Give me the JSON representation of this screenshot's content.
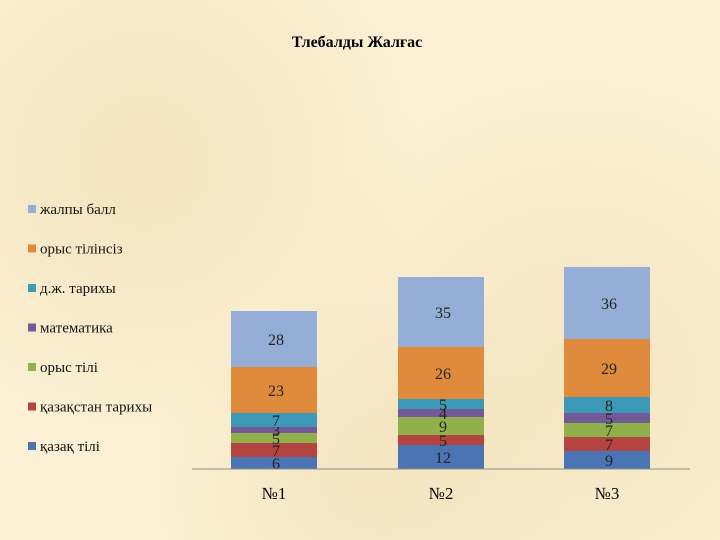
{
  "chart_data": {
    "type": "bar",
    "stacked": true,
    "title": "Тлебалды Жалғас",
    "categories": [
      "№1",
      "№2",
      "№3"
    ],
    "series": [
      {
        "name": "қазақ тілі",
        "color": "#4a74b4",
        "values": [
          6,
          12,
          9
        ]
      },
      {
        "name": "қазақстан тарихы",
        "color": "#b3443f",
        "values": [
          7,
          5,
          7
        ]
      },
      {
        "name": "орыс тілі",
        "color": "#8fb04a",
        "values": [
          5,
          9,
          7
        ]
      },
      {
        "name": "математика",
        "color": "#735a97",
        "values": [
          3,
          4,
          5
        ]
      },
      {
        "name": "д.ж. тарихы",
        "color": "#3c9ab8",
        "values": [
          7,
          5,
          8
        ]
      },
      {
        "name": "орыс тілінсіз",
        "color": "#e08a3c",
        "values": [
          23,
          26,
          29
        ]
      },
      {
        "name": "жалпы балл",
        "color": "#94aed7",
        "values": [
          28,
          35,
          36
        ]
      }
    ],
    "legend_position": "left",
    "grid": false
  }
}
